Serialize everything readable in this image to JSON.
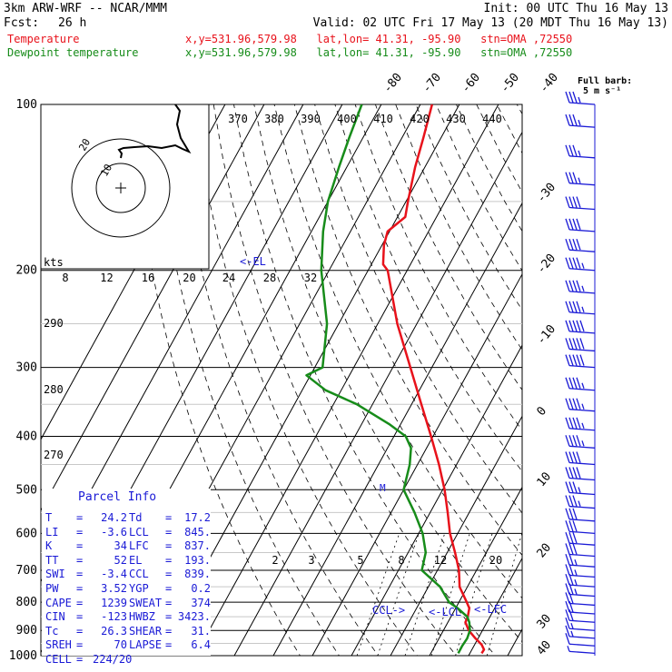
{
  "header": {
    "model": "3km ARW-WRF -- NCAR/MMM",
    "init": "Init: 00 UTC Thu 16 May 13",
    "fcst_label": "Fcst:",
    "fcst_value": "26 h",
    "valid": "Valid: 02 UTC Fri 17 May 13 (20 MDT Thu 16 May 13)",
    "lines": [
      {
        "name": "Temperature",
        "info": "x,y=531.96,579.98   lat,lon= 41.31, -95.90   stn=OMA ,72550",
        "color": "#e8121b"
      },
      {
        "name": "Dewpoint temperature",
        "info": "x,y=531.96,579.98   lat,lon= 41.31, -95.90   stn=OMA ,72550",
        "color": "#178c1a"
      }
    ]
  },
  "wind_key": {
    "title": "Full barb:",
    "value": "5 m s⁻¹"
  },
  "colors": {
    "temperature": "#e8121b",
    "dewpoint": "#178c1a",
    "isotherm": "#000000",
    "pressure": "#000000",
    "barbs": "#1a1ad6",
    "parcel": "#1a1ad6",
    "hodograph": "#000000"
  },
  "chart_data": {
    "type": "line",
    "pressure_levels": [
      100,
      200,
      300,
      400,
      500,
      600,
      700,
      800,
      900,
      1000
    ],
    "isotherm_labels": [
      "-80",
      "-70",
      "-60",
      "-50",
      "-40",
      "-30",
      "-20",
      "-10",
      "0",
      "10",
      "20",
      "30",
      "40"
    ],
    "theta_labels": [
      "370",
      "380",
      "390",
      "400",
      "410",
      "420",
      "430",
      "440"
    ],
    "mixing_ratio_labels": [
      "2",
      "3",
      "5",
      "8",
      "12",
      "20"
    ],
    "thetae_labels": [
      "290",
      "280",
      "270"
    ],
    "speed_labels": [
      "8",
      "12",
      "16",
      "20",
      "24",
      "28",
      "32"
    ],
    "speed_unit": "kts",
    "markers": [
      "<-EL",
      "CCL->",
      "<-LCL",
      "<-LFC",
      "M"
    ],
    "series": [
      {
        "name": "Temperature",
        "points": [
          {
            "p": 990,
            "t": 23.0
          },
          {
            "p": 975,
            "t": 23.1
          },
          {
            "p": 955,
            "t": 21.8
          },
          {
            "p": 930,
            "t": 19.3
          },
          {
            "p": 900,
            "t": 16.5
          },
          {
            "p": 870,
            "t": 14.5
          },
          {
            "p": 850,
            "t": 14.3
          },
          {
            "p": 820,
            "t": 13.5
          },
          {
            "p": 800,
            "t": 12.0
          },
          {
            "p": 750,
            "t": 8.0
          },
          {
            "p": 700,
            "t": 5.5
          },
          {
            "p": 650,
            "t": 2.0
          },
          {
            "p": 600,
            "t": -2.0
          },
          {
            "p": 550,
            "t": -5.5
          },
          {
            "p": 500,
            "t": -9.5
          },
          {
            "p": 450,
            "t": -14.5
          },
          {
            "p": 400,
            "t": -20.5
          },
          {
            "p": 350,
            "t": -27.5
          },
          {
            "p": 300,
            "t": -35.5
          },
          {
            "p": 250,
            "t": -45.0
          },
          {
            "p": 200,
            "t": -55.0
          },
          {
            "p": 195,
            "t": -57.0
          },
          {
            "p": 180,
            "t": -59.5
          },
          {
            "p": 170,
            "t": -60.5
          },
          {
            "p": 160,
            "t": -58.0
          },
          {
            "p": 150,
            "t": -59.5
          },
          {
            "p": 130,
            "t": -62.5
          },
          {
            "p": 115,
            "t": -64.5
          },
          {
            "p": 100,
            "t": -67.0
          }
        ]
      },
      {
        "name": "Dewpoint temperature",
        "points": [
          {
            "p": 990,
            "t": 17.0
          },
          {
            "p": 960,
            "t": 17.0
          },
          {
            "p": 930,
            "t": 17.2
          },
          {
            "p": 900,
            "t": 16.8
          },
          {
            "p": 870,
            "t": 15.5
          },
          {
            "p": 850,
            "t": 14.2
          },
          {
            "p": 820,
            "t": 10.5
          },
          {
            "p": 800,
            "t": 7.5
          },
          {
            "p": 750,
            "t": 3.0
          },
          {
            "p": 700,
            "t": -4.0
          },
          {
            "p": 650,
            "t": -5.5
          },
          {
            "p": 600,
            "t": -9.0
          },
          {
            "p": 550,
            "t": -14.0
          },
          {
            "p": 500,
            "t": -20.0
          },
          {
            "p": 450,
            "t": -22.0
          },
          {
            "p": 420,
            "t": -24.0
          },
          {
            "p": 400,
            "t": -27.0
          },
          {
            "p": 380,
            "t": -33.0
          },
          {
            "p": 350,
            "t": -44.0
          },
          {
            "p": 330,
            "t": -54.0
          },
          {
            "p": 310,
            "t": -61.0
          },
          {
            "p": 300,
            "t": -58.0
          },
          {
            "p": 250,
            "t": -63.0
          },
          {
            "p": 200,
            "t": -72.0
          },
          {
            "p": 170,
            "t": -77.0
          },
          {
            "p": 150,
            "t": -80.0
          },
          {
            "p": 130,
            "t": -82.0
          },
          {
            "p": 115,
            "t": -83.5
          },
          {
            "p": 100,
            "t": -85.0
          }
        ]
      }
    ],
    "wind_barbs": [
      {
        "p": 990,
        "spd": 5,
        "dir": 170
      },
      {
        "p": 960,
        "spd": 10,
        "dir": 180
      },
      {
        "p": 930,
        "spd": 15,
        "dir": 195
      },
      {
        "p": 900,
        "spd": 17,
        "dir": 200
      },
      {
        "p": 870,
        "spd": 20,
        "dir": 210
      },
      {
        "p": 840,
        "spd": 20,
        "dir": 215
      },
      {
        "p": 810,
        "spd": 22,
        "dir": 220
      },
      {
        "p": 780,
        "spd": 25,
        "dir": 225
      },
      {
        "p": 750,
        "spd": 25,
        "dir": 230
      },
      {
        "p": 720,
        "spd": 27,
        "dir": 235
      },
      {
        "p": 690,
        "spd": 27,
        "dir": 240
      },
      {
        "p": 660,
        "spd": 30,
        "dir": 240
      },
      {
        "p": 630,
        "spd": 30,
        "dir": 245
      },
      {
        "p": 600,
        "spd": 32,
        "dir": 245
      },
      {
        "p": 570,
        "spd": 32,
        "dir": 250
      },
      {
        "p": 540,
        "spd": 35,
        "dir": 250
      },
      {
        "p": 510,
        "spd": 37,
        "dir": 250
      },
      {
        "p": 480,
        "spd": 40,
        "dir": 250
      },
      {
        "p": 450,
        "spd": 42,
        "dir": 250
      },
      {
        "p": 420,
        "spd": 45,
        "dir": 250
      },
      {
        "p": 390,
        "spd": 45,
        "dir": 250
      },
      {
        "p": 360,
        "spd": 47,
        "dir": 252
      },
      {
        "p": 330,
        "spd": 47,
        "dir": 252
      },
      {
        "p": 300,
        "spd": 50,
        "dir": 255
      },
      {
        "p": 280,
        "spd": 50,
        "dir": 255
      },
      {
        "p": 260,
        "spd": 50,
        "dir": 255
      },
      {
        "p": 240,
        "spd": 47,
        "dir": 255
      },
      {
        "p": 220,
        "spd": 45,
        "dir": 255
      },
      {
        "p": 200,
        "spd": 45,
        "dir": 255
      },
      {
        "p": 185,
        "spd": 42,
        "dir": 255
      },
      {
        "p": 170,
        "spd": 40,
        "dir": 255
      },
      {
        "p": 155,
        "spd": 40,
        "dir": 255
      },
      {
        "p": 140,
        "spd": 37,
        "dir": 255
      },
      {
        "p": 125,
        "spd": 35,
        "dir": 255
      },
      {
        "p": 110,
        "spd": 35,
        "dir": 255
      },
      {
        "p": 100,
        "spd": 35,
        "dir": 255
      }
    ],
    "hodograph": {
      "ring_labels": [
        "10",
        "20"
      ],
      "points": [
        {
          "u": 0,
          "v": 0.3
        },
        {
          "u": 0.1,
          "v": 0.8
        },
        {
          "u": -0.2,
          "v": 1.2
        },
        {
          "u": 0.3,
          "v": 1.4
        },
        {
          "u": 1.5,
          "v": 1.5
        },
        {
          "u": 3.0,
          "v": 1.6
        },
        {
          "u": 4.5,
          "v": 1.4
        },
        {
          "u": 6.0,
          "v": 1.7
        },
        {
          "u": 6.8,
          "v": 1.3
        },
        {
          "u": 7.5,
          "v": 1.0
        },
        {
          "u": 6.6,
          "v": 2.5
        },
        {
          "u": 6.2,
          "v": 4.0
        },
        {
          "u": 6.5,
          "v": 5.5
        },
        {
          "u": 6.0,
          "v": 6.2
        }
      ]
    }
  },
  "parcel_info": {
    "title": "Parcel Info",
    "rows": [
      [
        "T",
        "=",
        "24.2",
        "Td",
        "=",
        "17.2"
      ],
      [
        "LI",
        "=",
        "-3.6",
        "LCL",
        "=",
        "845."
      ],
      [
        "K",
        "=",
        "34",
        "LFC",
        "=",
        "837."
      ],
      [
        "TT",
        "=",
        "52",
        "EL",
        "=",
        "193."
      ],
      [
        "SWI",
        "=",
        "-3.4",
        "CCL",
        "=",
        "839."
      ],
      [
        "PW",
        "=",
        "3.52",
        "YGP",
        "=",
        "0.2"
      ],
      [
        "CAPE",
        "=",
        "1239",
        "SWEAT",
        "=",
        "374"
      ],
      [
        "CIN",
        "=",
        "-123",
        "HWBZ",
        "=",
        "3423."
      ],
      [
        "Tc",
        "=",
        "26.3",
        "SHEAR",
        "=",
        "31."
      ],
      [
        "SREH",
        "=",
        "70",
        "LAPSE",
        "=",
        "6.4"
      ],
      [
        "CELL",
        "=",
        "224/20",
        "",
        "",
        ""
      ]
    ]
  }
}
